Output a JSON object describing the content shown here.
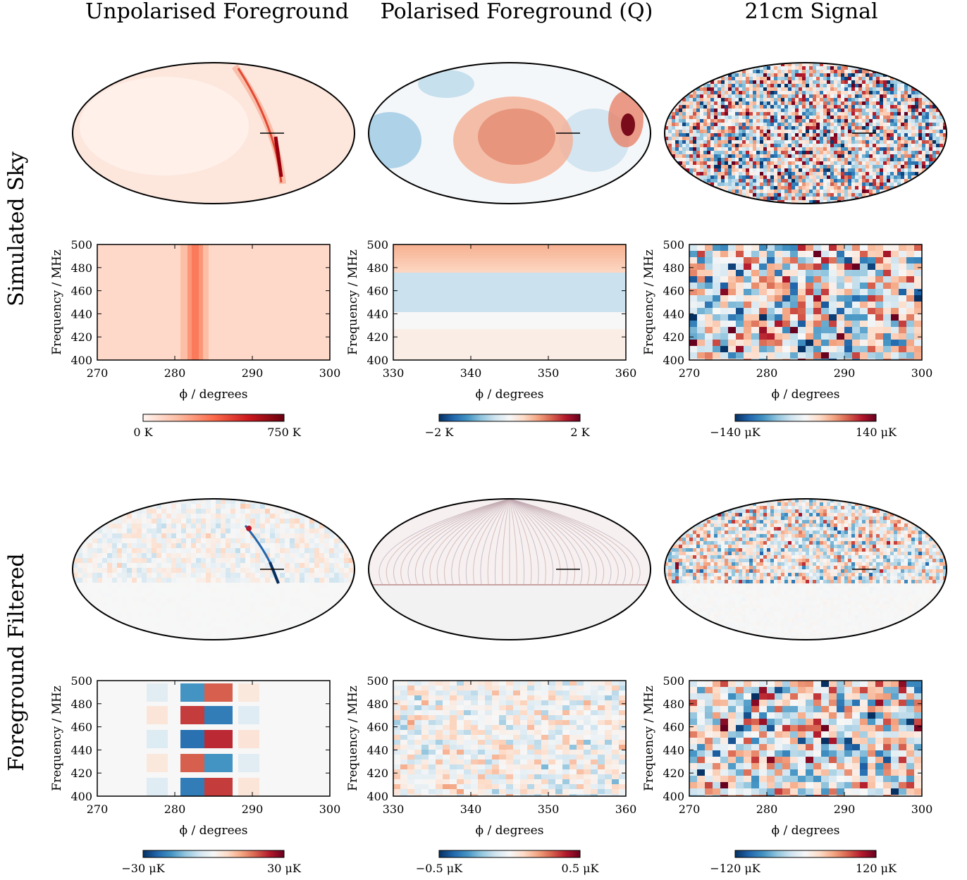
{
  "column_titles": [
    "Unpolarised Foreground",
    "Polarised Foreground (Q)",
    "21cm Signal"
  ],
  "row_titles": [
    "Simulated Sky",
    "Foreground Filtered"
  ],
  "colors": {
    "sequential_reds": [
      "#fff5f0",
      "#fcbba1",
      "#fb6a4a",
      "#cb181d",
      "#67000d"
    ],
    "diverging_RdBu": [
      "#053061",
      "#2166ac",
      "#4393c3",
      "#92c5de",
      "#d1e5f0",
      "#f7f7f7",
      "#fddbc7",
      "#f4a582",
      "#d6604d",
      "#b2182b",
      "#67001f"
    ],
    "masked": "#f2f2f2"
  },
  "chart_data": [
    {
      "type": "heatmap",
      "panel": "Simulated Sky / Unpolarised Foreground / map",
      "projection": "mollweide",
      "colormap": "Reds",
      "colorbar": {
        "min_label": "0 K",
        "max_label": "750 K",
        "range": [
          0,
          750
        ],
        "unit": "K"
      },
      "features": [
        "galactic plane arc through center-right"
      ]
    },
    {
      "type": "heatmap",
      "panel": "Simulated Sky / Polarised Foreground (Q) / map",
      "projection": "mollweide",
      "colormap": "RdBu_r",
      "colorbar": {
        "min_label": "−2 K",
        "max_label": "2 K",
        "range": [
          -2,
          2
        ],
        "unit": "K"
      }
    },
    {
      "type": "heatmap",
      "panel": "Simulated Sky / 21cm Signal / map",
      "projection": "mollweide",
      "colormap": "RdBu_r",
      "colorbar": {
        "min_label": "−140 μK",
        "max_label": "140 μK",
        "range": [
          -140,
          140
        ],
        "unit": "μK"
      }
    },
    {
      "type": "heatmap",
      "panel": "Simulated Sky / Unpolarised Foreground / slice",
      "colormap": "Reds",
      "xlabel": "ϕ / degrees",
      "ylabel": "Frequency / MHz",
      "xlim": [
        270,
        300
      ],
      "ylim": [
        400,
        500
      ],
      "xticks": [
        "270",
        "280",
        "290",
        "300"
      ],
      "yticks": [
        "400",
        "420",
        "440",
        "460",
        "480",
        "500"
      ],
      "features": [
        "bright vertical band near ϕ = 283"
      ]
    },
    {
      "type": "heatmap",
      "panel": "Simulated Sky / Polarised Foreground (Q) / slice",
      "colormap": "RdBu_r",
      "xlabel": "ϕ / degrees",
      "ylabel": "Frequency / MHz",
      "xlim": [
        330,
        360
      ],
      "ylim": [
        400,
        500
      ],
      "xticks": [
        "330",
        "340",
        "350",
        "360"
      ],
      "yticks": [
        "400",
        "420",
        "440",
        "460",
        "480",
        "500"
      ]
    },
    {
      "type": "heatmap",
      "panel": "Simulated Sky / 21cm Signal / slice",
      "colormap": "RdBu_r",
      "xlabel": "ϕ / degrees",
      "ylabel": "Frequency / MHz",
      "xlim": [
        270,
        300
      ],
      "ylim": [
        400,
        500
      ],
      "xticks": [
        "270",
        "280",
        "290",
        "300"
      ],
      "yticks": [
        "400",
        "420",
        "440",
        "460",
        "480",
        "500"
      ]
    },
    {
      "type": "heatmap",
      "panel": "Foreground Filtered / Unpolarised Foreground / map",
      "projection": "mollweide",
      "colormap": "RdBu_r",
      "colorbar": {
        "min_label": "−30 μK",
        "max_label": "30 μK",
        "range": [
          -30,
          30
        ],
        "unit": "μK"
      }
    },
    {
      "type": "heatmap",
      "panel": "Foreground Filtered / Polarised Foreground (Q) / map",
      "projection": "mollweide",
      "colormap": "RdBu_r",
      "colorbar": {
        "min_label": "−0.5 μK",
        "max_label": "0.5 μK",
        "range": [
          -0.5,
          0.5
        ],
        "unit": "μK"
      }
    },
    {
      "type": "heatmap",
      "panel": "Foreground Filtered / 21cm Signal / map",
      "projection": "mollweide",
      "colormap": "RdBu_r",
      "colorbar": {
        "min_label": "−120 μK",
        "max_label": "120 μK",
        "range": [
          -120,
          120
        ],
        "unit": "μK"
      }
    },
    {
      "type": "heatmap",
      "panel": "Foreground Filtered / Unpolarised Foreground / slice",
      "colormap": "RdBu_r",
      "xlabel": "ϕ / degrees",
      "ylabel": "Frequency / MHz",
      "xlim": [
        270,
        300
      ],
      "ylim": [
        400,
        500
      ],
      "xticks": [
        "270",
        "280",
        "290",
        "300"
      ],
      "yticks": [
        "400",
        "420",
        "440",
        "460",
        "480",
        "500"
      ]
    },
    {
      "type": "heatmap",
      "panel": "Foreground Filtered / Polarised Foreground (Q) / slice",
      "colormap": "RdBu_r",
      "xlabel": "ϕ / degrees",
      "ylabel": "Frequency / MHz",
      "xlim": [
        330,
        360
      ],
      "ylim": [
        400,
        500
      ],
      "xticks": [
        "330",
        "340",
        "350",
        "360"
      ],
      "yticks": [
        "400",
        "420",
        "440",
        "460",
        "480",
        "500"
      ]
    },
    {
      "type": "heatmap",
      "panel": "Foreground Filtered / 21cm Signal / slice",
      "colormap": "RdBu_r",
      "xlabel": "ϕ / degrees",
      "ylabel": "Frequency / MHz",
      "xlim": [
        270,
        300
      ],
      "ylim": [
        400,
        500
      ],
      "xticks": [
        "270",
        "280",
        "290",
        "300"
      ],
      "yticks": [
        "400",
        "420",
        "440",
        "460",
        "480",
        "500"
      ]
    }
  ]
}
